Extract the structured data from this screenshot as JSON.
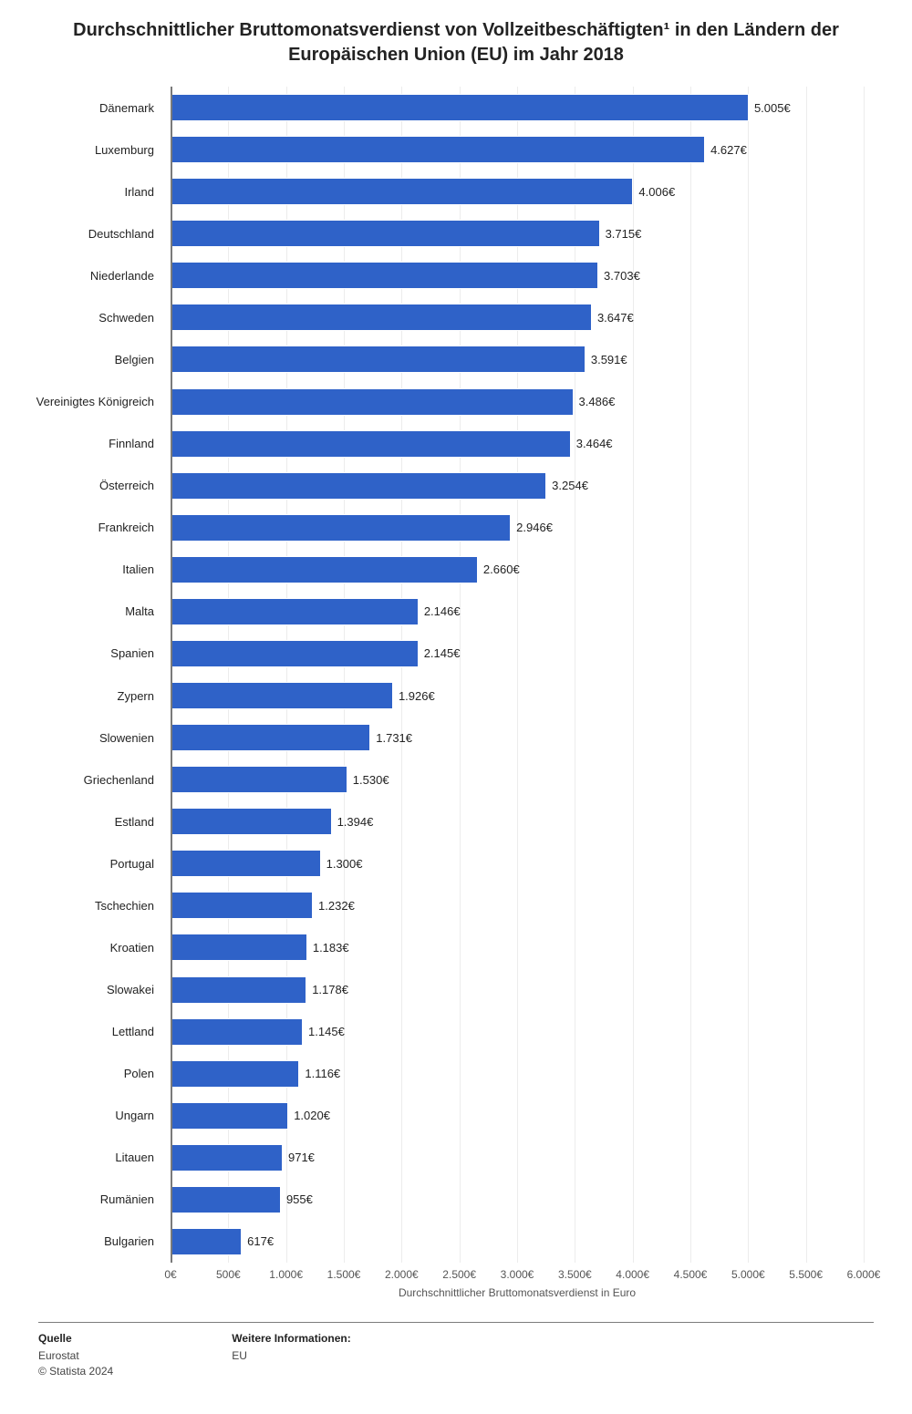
{
  "title": "Durchschnittlicher Bruttomonatsverdienst von Vollzeitbeschäftigten¹ in den Ländern der Europäischen Union (EU) im Jahr 2018",
  "chart": {
    "type": "bar-horizontal",
    "bar_color": "#2f62c8",
    "bar_border_color": "#ffffff",
    "background_color": "#ffffff",
    "grid_color": "#ececec",
    "plot_background_stripe": "#f7f7f7",
    "axis_color": "#7a7a7a",
    "text_color": "#232323",
    "xlim": [
      0,
      6000
    ],
    "xtick_step": 500,
    "xtick_suffix": "€",
    "x_axis_title": "Durchschnittlicher Bruttomonatsverdienst in Euro",
    "value_suffix": "€",
    "thousands_separator": ".",
    "title_fontsize": 20,
    "label_fontsize": 13,
    "tick_fontsize": 12,
    "categories": [
      "Dänemark",
      "Luxemburg",
      "Irland",
      "Deutschland",
      "Niederlande",
      "Schweden",
      "Belgien",
      "Vereinigtes Königreich",
      "Finnland",
      "Österreich",
      "Frankreich",
      "Italien",
      "Malta",
      "Spanien",
      "Zypern",
      "Slowenien",
      "Griechenland",
      "Estland",
      "Portugal",
      "Tschechien",
      "Kroatien",
      "Slowakei",
      "Lettland",
      "Polen",
      "Ungarn",
      "Litauen",
      "Rumänien",
      "Bulgarien"
    ],
    "values": [
      5005,
      4627,
      4006,
      3715,
      3703,
      3647,
      3591,
      3486,
      3464,
      3254,
      2946,
      2660,
      2146,
      2145,
      1926,
      1731,
      1530,
      1394,
      1300,
      1232,
      1183,
      1178,
      1145,
      1116,
      1020,
      971,
      955,
      617
    ]
  },
  "footer": {
    "source_heading": "Quelle",
    "source_line1": "Eurostat",
    "source_line2": "© Statista 2024",
    "info_heading": "Weitere Informationen:",
    "info_line1": "EU"
  }
}
